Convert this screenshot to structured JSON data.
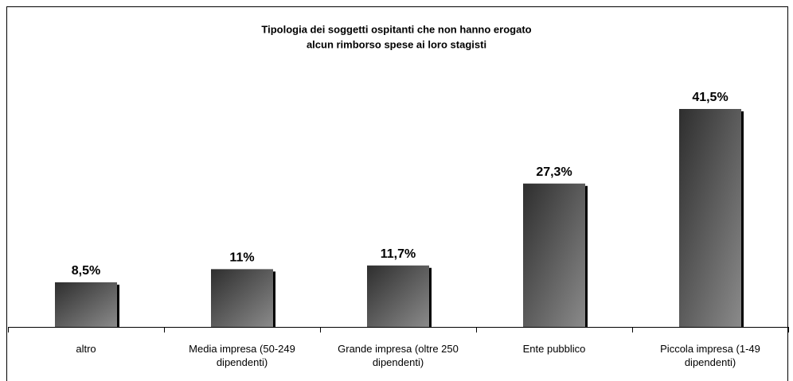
{
  "chart_data": {
    "type": "bar",
    "title": [
      "Tipologia dei soggetti ospitanti che non hanno erogato",
      "alcun rimborso spese ai loro stagisti"
    ],
    "categories": [
      "altro",
      "Media impresa (50-249 dipendenti)",
      "Grande impresa (oltre 250 dipendenti)",
      "Ente pubblico",
      "Piccola impresa (1-49 dipendenti)"
    ],
    "values": [
      8.5,
      11,
      11.7,
      27.3,
      41.5
    ],
    "value_labels": [
      "8,5%",
      "11%",
      "11,7%",
      "27,3%",
      "41,5%"
    ],
    "color": "#555555"
  }
}
